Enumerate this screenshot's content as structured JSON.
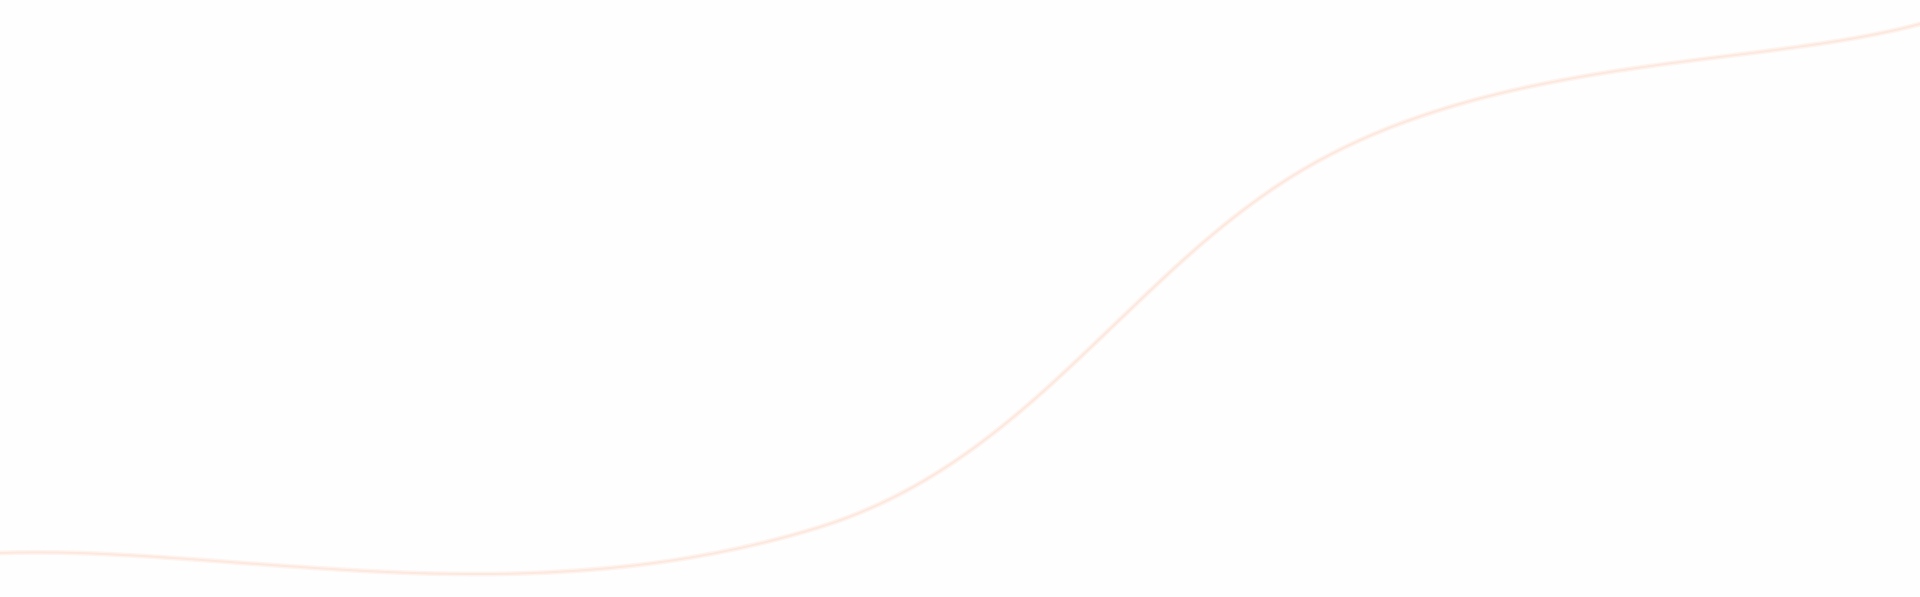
{
  "background": {
    "color": "#fffefe"
  },
  "decoration": {
    "wave_line_color": "#fde8df",
    "wave_glow_color": "#fef4ef"
  }
}
